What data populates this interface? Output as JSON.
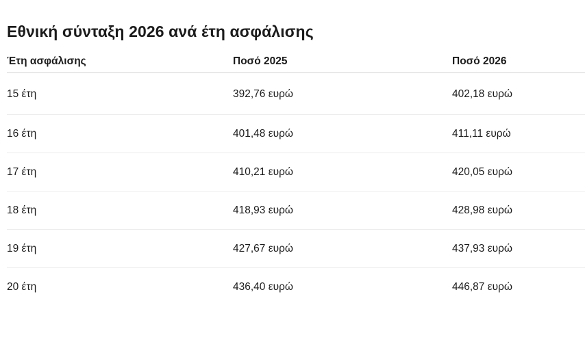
{
  "title": "Εθνική σύνταξη 2026 ανά έτη ασφάλισης",
  "table": {
    "headers": [
      "Έτη ασφάλισης",
      "Ποσό 2025",
      "Ποσό 2026"
    ],
    "rows": [
      [
        "15 έτη",
        "392,76 ευρώ",
        "402,18 ευρώ"
      ],
      [
        "16 έτη",
        "401,48 ευρώ",
        "411,11 ευρώ"
      ],
      [
        "17 έτη",
        "410,21 ευρώ",
        "420,05 ευρώ"
      ],
      [
        "18 έτη",
        "418,93 ευρώ",
        "428,98 ευρώ"
      ],
      [
        "19 έτη",
        "427,67 ευρώ",
        "437,93 ευρώ"
      ],
      [
        "20 έτη",
        "436,40 ευρώ",
        "446,87 ευρώ"
      ]
    ]
  },
  "chart_data": {
    "type": "table",
    "title": "Εθνική σύνταξη 2026 ανά έτη ασφάλισης",
    "columns": [
      "Έτη ασφάλισης",
      "Ποσό 2025",
      "Ποσό 2026"
    ],
    "categories": [
      "15 έτη",
      "16 έτη",
      "17 έτη",
      "18 έτη",
      "19 έτη",
      "20 έτη"
    ],
    "series": [
      {
        "name": "Ποσό 2025",
        "values": [
          392.76,
          401.48,
          410.21,
          418.93,
          427.67,
          436.4
        ]
      },
      {
        "name": "Ποσό 2026",
        "values": [
          402.18,
          411.11,
          420.05,
          428.98,
          437.93,
          446.87
        ]
      }
    ],
    "unit": "ευρώ"
  },
  "colors": {
    "text": "#1b1b1b",
    "header_border": "#d4d4d4",
    "row_border": "#ededed",
    "background": "#ffffff"
  }
}
